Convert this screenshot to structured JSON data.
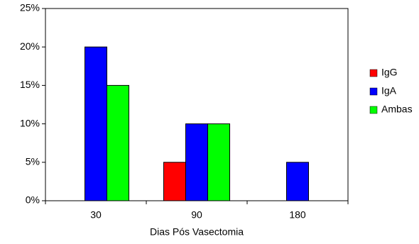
{
  "chart_data": {
    "type": "bar",
    "x_label": "Dias Pós Vasectomia",
    "categories": [
      "30",
      "90",
      "180"
    ],
    "series": [
      {
        "name": "IgG",
        "color": "#ff0000",
        "values": [
          0,
          5,
          0
        ]
      },
      {
        "name": "IgA",
        "color": "#0000ff",
        "values": [
          20,
          10,
          5
        ]
      },
      {
        "name": "Ambas",
        "color": "#00ff00",
        "values": [
          15,
          10,
          0
        ]
      }
    ],
    "ylim": [
      0,
      25
    ],
    "yticks": [
      {
        "value": 0,
        "label": "0%"
      },
      {
        "value": 5,
        "label": "5%"
      },
      {
        "value": 10,
        "label": "10%"
      },
      {
        "value": 15,
        "label": "15%"
      },
      {
        "value": 20,
        "label": "20%"
      },
      {
        "value": 25,
        "label": "25%"
      }
    ],
    "grid": false,
    "legend": "right"
  }
}
